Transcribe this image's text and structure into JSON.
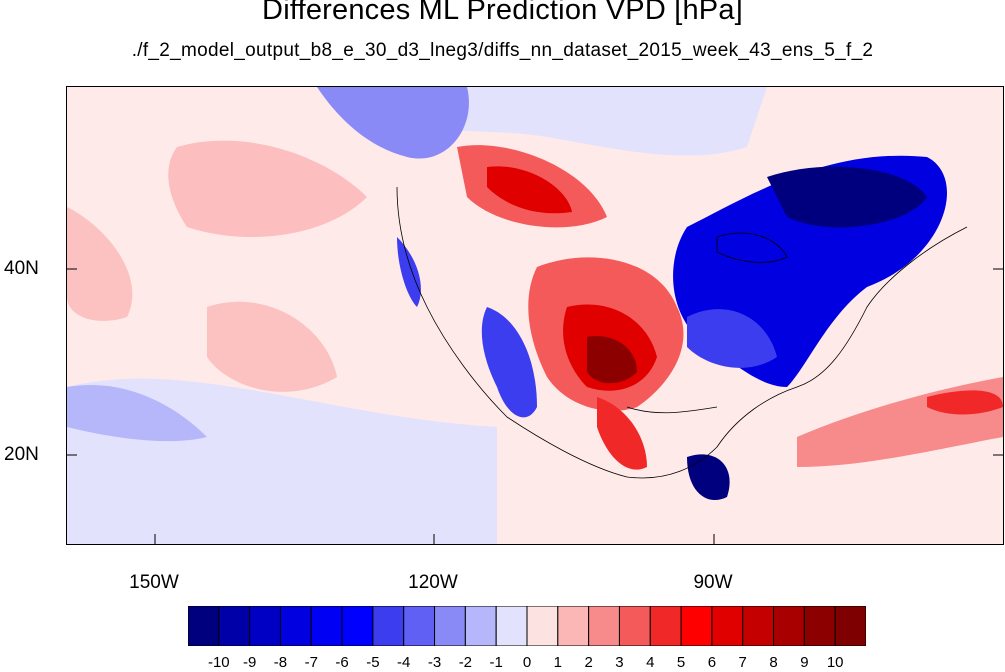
{
  "title": "Differences ML Prediction VPD [hPa]",
  "subtitle": "./f_2_model_output_b8_e_30_d3_lneg3/diffs_nn_dataset_2015_week_43_ens_5_f_2",
  "lat_labels": [
    "40N",
    "20N"
  ],
  "lon_labels": [
    "150W",
    "120W",
    "90W"
  ],
  "colorbar": {
    "labels": [
      "-10",
      "-9",
      "-8",
      "-7",
      "-6",
      "-5",
      "-4",
      "-3",
      "-2",
      "-1",
      "0",
      "1",
      "2",
      "3",
      "4",
      "5",
      "6",
      "7",
      "8",
      "9",
      "10"
    ],
    "colors": [
      "#00007f",
      "#0000a8",
      "#0000c4",
      "#0000e0",
      "#0000f4",
      "#0000ff",
      "#3d3df0",
      "#6060f4",
      "#8a8af7",
      "#b6b6fb",
      "#e2e2fd",
      "#fde2e2",
      "#fbb6b6",
      "#f78a8a",
      "#f45a5a",
      "#f02828",
      "#ff0000",
      "#e00000",
      "#c40000",
      "#a80000",
      "#8c0000",
      "#7f0000"
    ]
  },
  "map_colors": {
    "ocean_base": "#ffeaea",
    "light_blue": "#e2e2fd",
    "pale_red": "#fbb6b6",
    "red": "#f45a5a",
    "strong_red": "#e00000",
    "dark_red": "#8c0000",
    "blue": "#6060f4",
    "strong_blue": "#0000e0",
    "dark_blue": "#00007f"
  }
}
